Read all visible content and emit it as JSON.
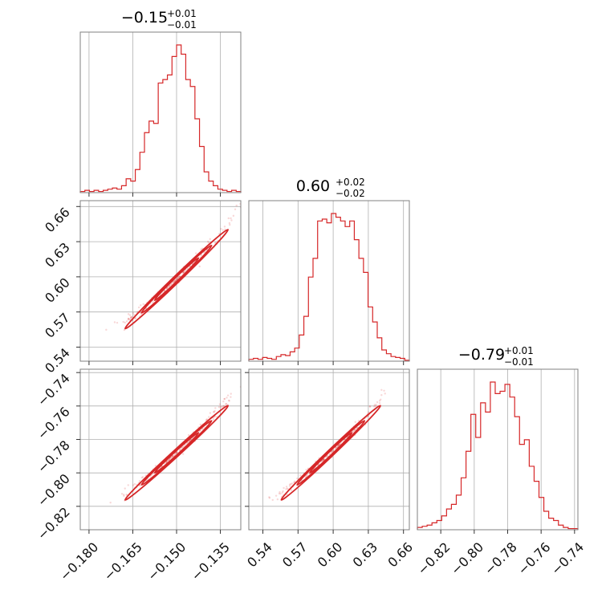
{
  "chart_data": {
    "type": "corner",
    "color": "#d62728",
    "grid": true,
    "parameters": [
      {
        "title": "−0.15",
        "plus": "+0.01",
        "minus": "−0.01",
        "range": [
          -0.183,
          -0.128
        ],
        "ticks": [
          -0.18,
          -0.165,
          -0.15,
          -0.135
        ],
        "tick_labels": [
          "−0.180",
          "−0.165",
          "−0.150",
          "−0.135"
        ],
        "median": -0.15,
        "sigma": 0.0075
      },
      {
        "title": "0.60",
        "plus": "+0.02",
        "minus": "−0.02",
        "range": [
          0.528,
          0.665
        ],
        "ticks": [
          0.54,
          0.57,
          0.6,
          0.63,
          0.66
        ],
        "tick_labels": [
          "0.54",
          "0.57",
          "0.60",
          "0.63",
          "0.66"
        ],
        "median": 0.598,
        "sigma": 0.018
      },
      {
        "title": "−0.79",
        "plus": "+0.01",
        "minus": "−0.01",
        "range": [
          -0.834,
          -0.738
        ],
        "ticks": [
          -0.82,
          -0.8,
          -0.78,
          -0.76,
          -0.74
        ],
        "tick_labels": [
          "−0.82",
          "−0.80",
          "−0.78",
          "−0.76",
          "−0.74"
        ],
        "median": -0.788,
        "sigma": 0.012
      }
    ],
    "histograms": [
      [
        1,
        2,
        1,
        2,
        1,
        2,
        3,
        4,
        3,
        6,
        12,
        10,
        20,
        35,
        52,
        62,
        60,
        95,
        98,
        102,
        118,
        128,
        120,
        98,
        92,
        64,
        40,
        18,
        10,
        6,
        3,
        2,
        1,
        2,
        1
      ],
      [
        2,
        3,
        2,
        4,
        3,
        2,
        5,
        7,
        6,
        10,
        14,
        28,
        48,
        90,
        110,
        150,
        152,
        148,
        158,
        154,
        150,
        144,
        150,
        130,
        110,
        95,
        58,
        42,
        25,
        12,
        8,
        5,
        4,
        3,
        1
      ],
      [
        2,
        3,
        4,
        6,
        8,
        12,
        18,
        22,
        30,
        45,
        68,
        100,
        80,
        110,
        102,
        128,
        118,
        120,
        126,
        115,
        98,
        74,
        78,
        55,
        42,
        28,
        16,
        10,
        8,
        4,
        2,
        1,
        1
      ]
    ]
  }
}
